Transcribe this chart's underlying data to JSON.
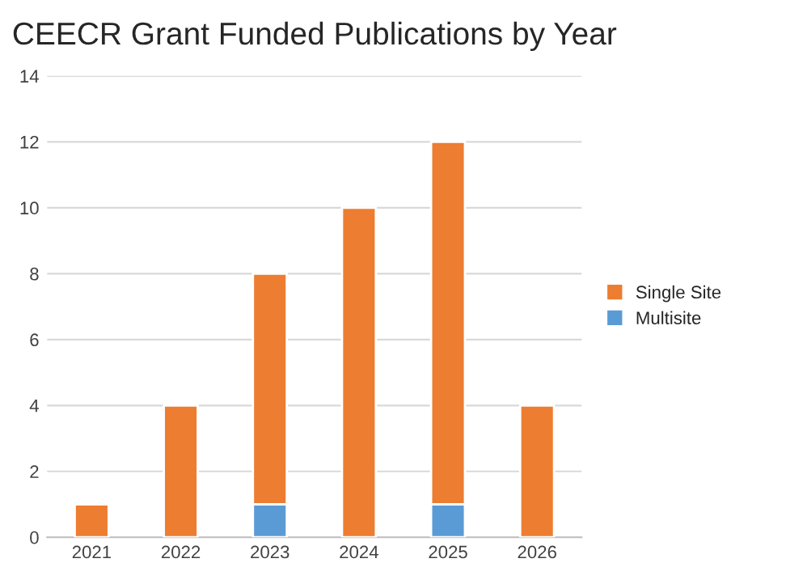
{
  "chart_data": {
    "type": "bar",
    "title": "CEECR Grant Funded Publications by Year",
    "categories": [
      "2021",
      "2022",
      "2023",
      "2024",
      "2025",
      "2026"
    ],
    "stacked": true,
    "series": [
      {
        "name": "Multisite",
        "color": "#5b9bd5",
        "values": [
          0,
          0,
          1,
          0,
          1,
          0
        ]
      },
      {
        "name": "Single Site",
        "color": "#ed7d31",
        "values": [
          1,
          4,
          7,
          10,
          11,
          4
        ]
      }
    ],
    "ylim": [
      0,
      14
    ],
    "yticks": [
      0,
      2,
      4,
      6,
      8,
      10,
      12,
      14
    ],
    "grid": "y",
    "legend": "right"
  }
}
